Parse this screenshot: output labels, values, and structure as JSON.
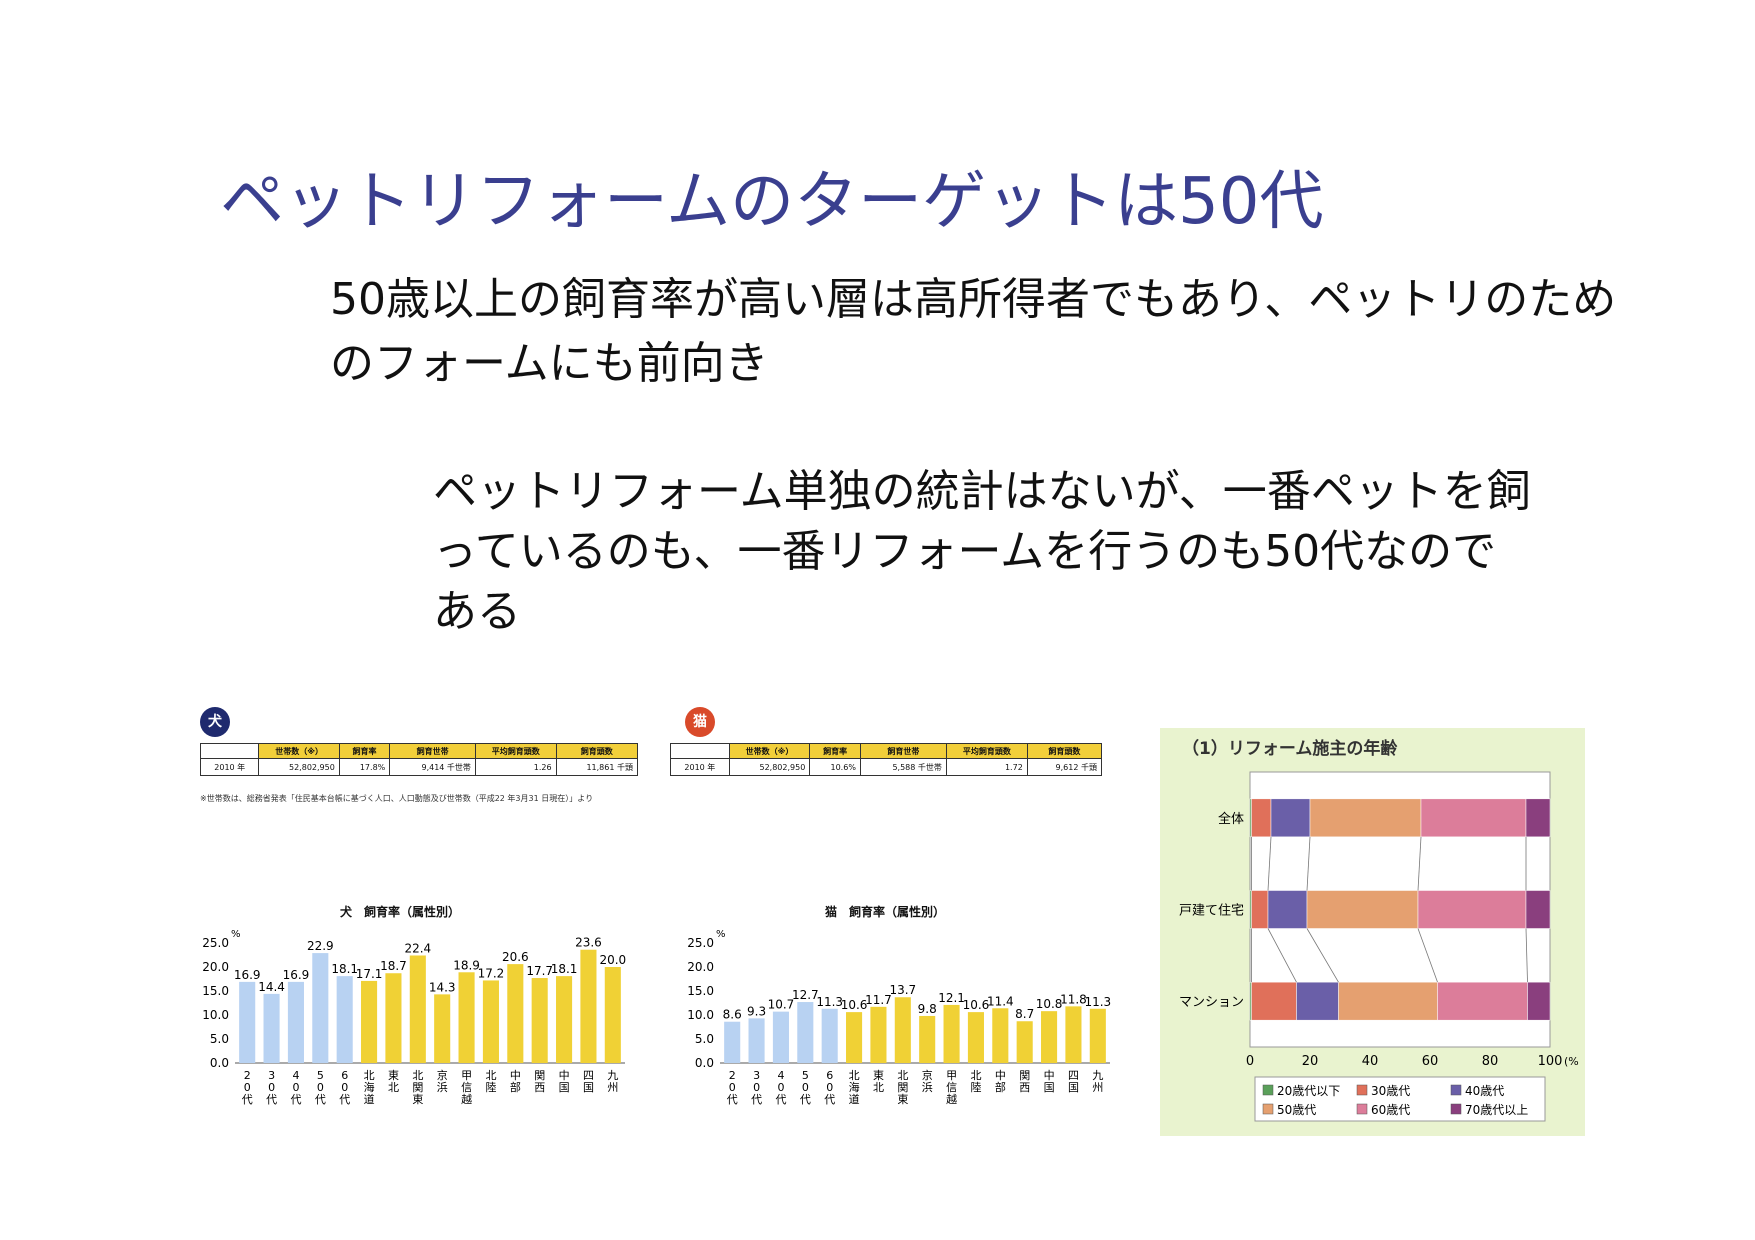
{
  "slide": {
    "title": "ペットリフォームのターゲットは50代",
    "paragraph1": "50歳以上の飼育率が高い層は高所得者でもあり、ペットリのためのフォームにも前向き",
    "paragraph2": "ペットリフォーム単独の統計はないが、一番ペットを飼っているのも、一番リフォームを行うのも50代なのである"
  },
  "dog_panel": {
    "badge": "犬",
    "table": {
      "headers": [
        "",
        "世帯数（※）",
        "飼育率",
        "飼育世帯",
        "平均飼育頭数",
        "飼育頭数"
      ],
      "row": [
        "2010 年",
        "52,802,950",
        "17.8%",
        "9,414 千世帯",
        "1.26",
        "11,861 千頭"
      ]
    },
    "note": "※世帯数は、総務省発表「住民基本台帳に基づく人口、人口動態及び世帯数（平成22 年3月31 日現在）」より"
  },
  "cat_panel": {
    "badge": "猫",
    "table": {
      "headers": [
        "",
        "世帯数（※）",
        "飼育率",
        "飼育世帯",
        "平均飼育頭数",
        "飼育頭数"
      ],
      "row": [
        "2010 年",
        "52,802,950",
        "10.6%",
        "5,588 千世帯",
        "1.72",
        "9,612 千頭"
      ]
    }
  },
  "colors": {
    "age_bar": "#b8d2f2",
    "region_bar": "#f0d135",
    "dog_badge": "#1f2a6e",
    "cat_badge": "#d94a2a",
    "title": "#3a3f8f"
  },
  "chart_data": [
    {
      "type": "bar",
      "title": "犬　飼育率（属性別）",
      "unit": "%",
      "categories": [
        "20代",
        "30代",
        "40代",
        "50代",
        "60代",
        "北海道",
        "東北",
        "北関東",
        "京浜",
        "甲信越",
        "北陸",
        "中部",
        "関西",
        "中国",
        "四国",
        "九州"
      ],
      "values": [
        16.9,
        14.4,
        16.9,
        22.9,
        18.1,
        17.1,
        18.7,
        22.4,
        14.3,
        18.9,
        17.2,
        20.6,
        17.7,
        18.1,
        23.6,
        20.0
      ],
      "value_labels": [
        "16.9",
        "14.4",
        "16.9",
        "22.9",
        "18.1",
        "17.1",
        "18.7",
        "22.4",
        "14.3",
        "18.9",
        "17.2",
        "20.6",
        "17.7",
        "18.1",
        "23.6",
        "20.0"
      ],
      "age_count": 5,
      "ylim": [
        0,
        25
      ],
      "yticks": [
        "0.0",
        "5.0",
        "10.0",
        "15.0",
        "20.0",
        "25.0"
      ]
    },
    {
      "type": "bar",
      "title": "猫　飼育率（属性別）",
      "unit": "%",
      "categories": [
        "20代",
        "30代",
        "40代",
        "50代",
        "60代",
        "北海道",
        "東北",
        "北関東",
        "京浜",
        "甲信越",
        "北陸",
        "中部",
        "関西",
        "中国",
        "四国",
        "九州"
      ],
      "values": [
        8.6,
        9.3,
        10.7,
        12.7,
        11.3,
        10.6,
        11.7,
        13.7,
        9.8,
        12.1,
        10.6,
        11.4,
        8.7,
        10.8,
        11.8,
        11.3
      ],
      "value_labels": [
        "8.6",
        "9.3",
        "10.7",
        "12.7",
        "11.3",
        "10.6",
        "11.7",
        "13.7",
        "9.8",
        "12.1",
        "10.6",
        "11.4",
        "8.7",
        "10.8",
        "11.8",
        "11.3"
      ],
      "age_count": 5,
      "ylim": [
        0,
        25
      ],
      "yticks": [
        "0.0",
        "5.0",
        "10.0",
        "15.0",
        "20.0",
        "25.0"
      ]
    },
    {
      "type": "bar",
      "stacked": true,
      "orientation": "horizontal",
      "title": "（1）リフォーム施主の年齢",
      "categories": [
        "全体",
        "戸建て住宅",
        "マンション"
      ],
      "series": [
        {
          "name": "20歳代以下",
          "color": "#5aa05a",
          "values": [
            0.5,
            0.5,
            0.5
          ]
        },
        {
          "name": "30歳代",
          "color": "#e0705a",
          "values": [
            6.5,
            5.5,
            15
          ]
        },
        {
          "name": "40歳代",
          "color": "#6a5fa8",
          "values": [
            13,
            13,
            14
          ]
        },
        {
          "name": "50歳代",
          "color": "#e5a070",
          "values": [
            37,
            37,
            33
          ]
        },
        {
          "name": "60歳代",
          "color": "#dc7d9a",
          "values": [
            35,
            36,
            30
          ]
        },
        {
          "name": "70歳代以上",
          "color": "#8a3f7e",
          "values": [
            8,
            8,
            7.5
          ]
        }
      ],
      "xlim": [
        0,
        100
      ],
      "xticks": [
        "0",
        "20",
        "40",
        "60",
        "80",
        "100"
      ],
      "xunit": "(%"
    }
  ]
}
